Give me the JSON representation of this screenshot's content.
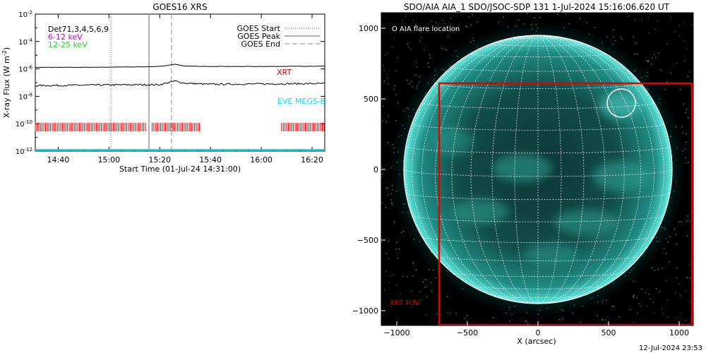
{
  "goes": {
    "title": "GOES16 XRS",
    "ylabel": "X-ray Flux (W m",
    "ylabel_sup": "-2",
    "ylabel_close": ")",
    "xlabel": "Start Time (01-Jul-24 14:31:00)",
    "x_ticks": [
      "14:40",
      "15:00",
      "15:20",
      "15:40",
      "16:00",
      "16:20"
    ],
    "y_ticks": [
      {
        "base": "10",
        "exp": "-2"
      },
      {
        "base": "10",
        "exp": "-4"
      },
      {
        "base": "10",
        "exp": "-6"
      },
      {
        "base": "10",
        "exp": "-8"
      },
      {
        "base": "10",
        "exp": "-10"
      },
      {
        "base": "10",
        "exp": "-12"
      }
    ],
    "det_label": "Det71,3,4,5,6,9",
    "band1": "6-12 keV",
    "band2": "12-25 keV",
    "legend": [
      "GOES Start",
      "GOES Peak",
      "GOES End"
    ],
    "xrt_label": "XRT",
    "eve_label": "EVE MEGS-B",
    "colors": {
      "band1": "#cc00cc",
      "band2": "#22cc22",
      "xrt": "#dd0000",
      "eve": "#00e0ff"
    }
  },
  "aia": {
    "title": "SDO/AIA AIA_1 SDO/JSOC-SDP 131  1-Jul-2024 15:16:06.620 UT",
    "legend": "O AIA flare location",
    "xrt_fov": "XRT FOV",
    "xlabel": "X (arcsec)",
    "x_ticks": [
      "−1000",
      "−500",
      "0",
      "500",
      "1000"
    ],
    "y_ticks": [
      "1000",
      "500",
      "0",
      "−500",
      "−1000"
    ],
    "colors": {
      "disk": "#2fa79c",
      "fov": "#e00000"
    }
  },
  "footer": "12-Jul-2024 23:53",
  "chart_data": [
    {
      "type": "line",
      "title": "GOES16 XRS",
      "xlabel": "Start Time (01-Jul-24 14:31:00)",
      "ylabel": "X-ray Flux (W m^-2)",
      "yscale": "log",
      "ylim": [
        1e-12,
        0.01
      ],
      "xlim": [
        "14:31",
        "16:25"
      ],
      "series": [
        {
          "x": [
            "14:31",
            "14:50",
            "15:10",
            "15:20",
            "15:26",
            "15:30",
            "15:40",
            "16:00",
            "16:25"
          ],
          "y": [
            1.3e-06,
            1.3e-06,
            1.4e-06,
            1.5e-06,
            2.2e-06,
            1.6e-06,
            1.5e-06,
            1.5e-06,
            1.6e-06
          ]
        },
        {
          "x": [
            "14:31",
            "14:50",
            "15:10",
            "15:20",
            "15:26",
            "15:30",
            "15:40",
            "16:00",
            "16:25"
          ],
          "y": [
            6e-08,
            6.5e-08,
            7e-08,
            7e-08,
            1.3e-07,
            9e-08,
            7.5e-08,
            8e-08,
            8.5e-08
          ]
        }
      ],
      "vlines": [
        {
          "name": "GOES Start",
          "x": "15:01",
          "style": "dotted"
        },
        {
          "name": "GOES Peak",
          "x": "15:16",
          "style": "solid"
        },
        {
          "name": "GOES End",
          "x": "15:25",
          "style": "dashed"
        }
      ],
      "xrt_observations": [
        [
          "14:31",
          "15:15"
        ],
        [
          "15:17",
          "15:36"
        ],
        [
          "16:08",
          "16:25"
        ]
      ],
      "eve_level": 1.1e-12
    },
    {
      "type": "image",
      "title": "SDO/AIA AIA_1 SDO/JSOC-SDP 131  1-Jul-2024 15:16:06.620 UT",
      "xlabel": "X (arcsec)",
      "xlim": [
        -1100,
        1100
      ],
      "ylim": [
        -1100,
        1100
      ],
      "flare_location": {
        "x": 590,
        "y": 470
      },
      "xrt_fov": {
        "x0": -700,
        "x1": 1090,
        "y0": -1100,
        "y1": 600
      }
    }
  ]
}
